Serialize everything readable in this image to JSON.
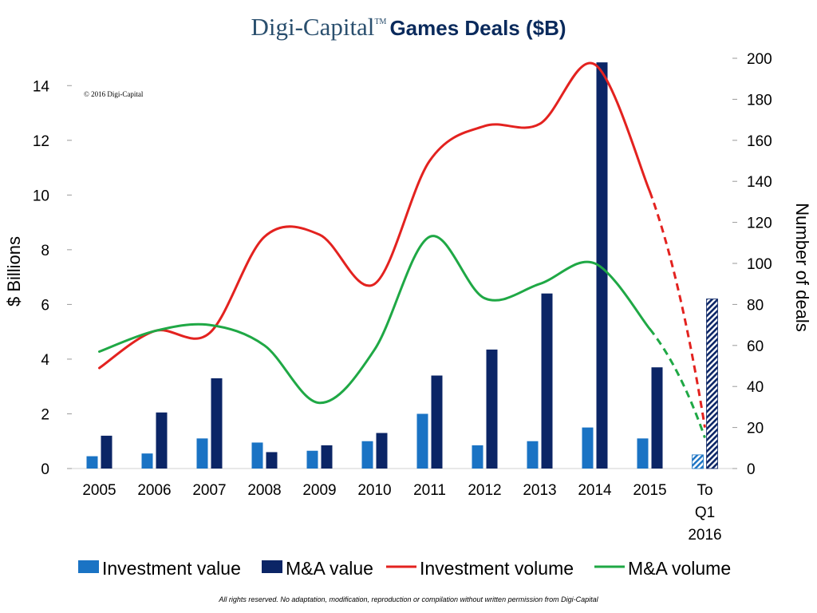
{
  "header": {
    "brand": "Digi-Capital",
    "tm": "TM",
    "title": "Games Deals ($B)"
  },
  "copyright": "© 2016 Digi-Capital",
  "footer": "All rights reserved. No adaptation, modification, reproduction or compilation without written permission from Digi-Capital",
  "colors": {
    "investment_value": "#1a73c4",
    "ma_value": "#0b2566",
    "investment_volume": "#e3221f",
    "ma_volume": "#1fa845"
  },
  "chart_data": {
    "type": "bar",
    "title": "Games Deals ($B)",
    "categories": [
      "2005",
      "2006",
      "2007",
      "2008",
      "2009",
      "2010",
      "2011",
      "2012",
      "2013",
      "2014",
      "2015",
      "To Q1 2016"
    ],
    "category_lines": [
      [
        "2005"
      ],
      [
        "2006"
      ],
      [
        "2007"
      ],
      [
        "2008"
      ],
      [
        "2009"
      ],
      [
        "2010"
      ],
      [
        "2011"
      ],
      [
        "2012"
      ],
      [
        "2013"
      ],
      [
        "2014"
      ],
      [
        "2015"
      ],
      [
        "To",
        "Q1",
        "2016"
      ]
    ],
    "ylabel": "$ Billions",
    "y2label": "Number of deals",
    "ylim": [
      0,
      15
    ],
    "y2lim": [
      0,
      200
    ],
    "yticks": [
      0,
      2,
      4,
      6,
      8,
      10,
      12,
      14
    ],
    "y2ticks": [
      0,
      20,
      40,
      60,
      80,
      100,
      120,
      140,
      160,
      180,
      200
    ],
    "series": [
      {
        "name": "Investment value",
        "kind": "bar",
        "axis": "left",
        "values": [
          0.45,
          0.55,
          1.1,
          0.95,
          0.65,
          1.0,
          2.0,
          0.85,
          1.0,
          1.5,
          1.1,
          0.5
        ]
      },
      {
        "name": "M&A value",
        "kind": "bar",
        "axis": "left",
        "values": [
          1.2,
          2.05,
          3.3,
          0.6,
          0.85,
          1.3,
          3.4,
          4.35,
          6.4,
          14.85,
          3.7,
          6.2
        ]
      },
      {
        "name": "Investment volume",
        "kind": "line",
        "axis": "right",
        "values": [
          49,
          67,
          66,
          113,
          114,
          90,
          150,
          167,
          168,
          197,
          135,
          20
        ]
      },
      {
        "name": "M&A volume",
        "kind": "line",
        "axis": "right",
        "values": [
          57,
          67,
          70,
          60,
          32,
          58,
          113,
          83,
          90,
          100,
          68,
          15
        ]
      }
    ],
    "legend": [
      "Investment value",
      "M&A value",
      "Investment volume",
      "M&A volume"
    ],
    "legend_position": "bottom",
    "projected_categories": [
      "To Q1 2016"
    ]
  }
}
